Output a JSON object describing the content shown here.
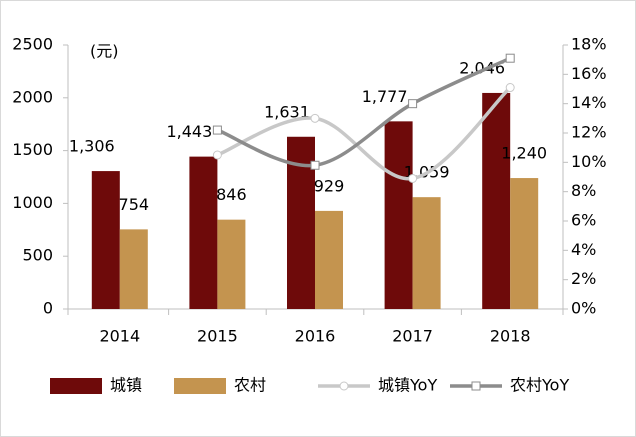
{
  "chart_data": {
    "type": "bar",
    "unit_label": "(元)",
    "categories": [
      "2014",
      "2015",
      "2016",
      "2017",
      "2018"
    ],
    "series": [
      {
        "name": "城镇",
        "color": "#6e0a0a",
        "type": "bar",
        "values": [
          1306,
          1443,
          1631,
          1777,
          2046
        ],
        "value_labels": [
          "1,306",
          "1,443",
          "1,631",
          "1,777",
          "2,046"
        ]
      },
      {
        "name": "农村",
        "color": "#c4944f",
        "type": "bar",
        "values": [
          754,
          846,
          929,
          1059,
          1240
        ],
        "value_labels": [
          "754",
          "846",
          "929",
          "1,059",
          "1,240"
        ]
      },
      {
        "name": "城镇YoY",
        "color": "#c8c8c8",
        "type": "line",
        "marker": "circle",
        "axis": "y2",
        "values": [
          null,
          10.5,
          13.0,
          8.9,
          15.1
        ]
      },
      {
        "name": "农村YoY",
        "color": "#8c8c8c",
        "type": "line",
        "marker": "square",
        "axis": "y2",
        "values": [
          null,
          12.2,
          9.8,
          14.0,
          17.1
        ]
      }
    ],
    "ylim": [
      0,
      2500
    ],
    "yticks": [
      0,
      500,
      1000,
      1500,
      2000,
      2500
    ],
    "y2lim": [
      0,
      18
    ],
    "y2ticks": [
      {
        "value": 0,
        "label": "0%"
      },
      {
        "value": 2,
        "label": "2%"
      },
      {
        "value": 4,
        "label": "4%"
      },
      {
        "value": 6,
        "label": "6%"
      },
      {
        "value": 8,
        "label": "8%"
      },
      {
        "value": 10,
        "label": "10%"
      },
      {
        "value": 12,
        "label": "12%"
      },
      {
        "value": 14,
        "label": "14%"
      },
      {
        "value": 16,
        "label": "16%"
      },
      {
        "value": 18,
        "label": "18%"
      }
    ],
    "grid": false,
    "legend": "bottom"
  }
}
